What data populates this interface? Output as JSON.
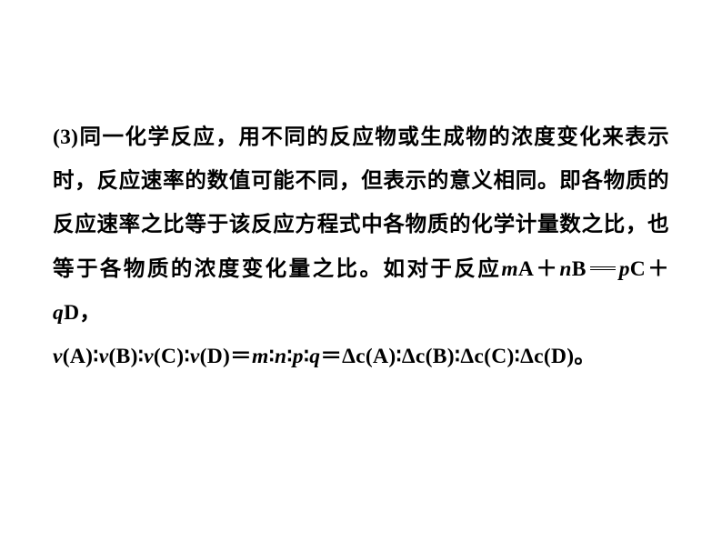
{
  "doc": {
    "background": "#ffffff",
    "text_color": "#000000",
    "font_size_pt": 18,
    "line_height": 2.05,
    "font_weight": "bold",
    "para1": {
      "lead": "(3)",
      "t1": "同一化学反应",
      "c1": "，",
      "t2": "用不同的反应物或生成物的浓度变化来表示时",
      "c2": "，",
      "t3": "反应速率的数值可能不同",
      "c3": "，",
      "t4": "但表示的意义相同",
      "p1": "。",
      "t5": "即各物质的反应速率之比等于该反应方程式中各物质的化学计量数之比",
      "c4": "，",
      "t6": "也等于各物质的浓度变化量之比",
      "p2": "。",
      "t7": "如对于反应"
    },
    "eqn1": {
      "m": "m",
      "A": "A",
      "plus1": "＋",
      "n": "n",
      "B": "B",
      "p": "p",
      "C": "C",
      "plus2": "＋",
      "q": "q",
      "D": "D",
      "comma": "，"
    },
    "eqn2": {
      "v": "v",
      "A": "A",
      "B": "B",
      "C": "C",
      "D": "D",
      "colon": "∶",
      "eq": "＝",
      "m": "m",
      "n": "n",
      "p": "p",
      "q": "q",
      "dc": "Δc",
      "lp": "(",
      "rp": ")",
      "end": "。"
    }
  }
}
